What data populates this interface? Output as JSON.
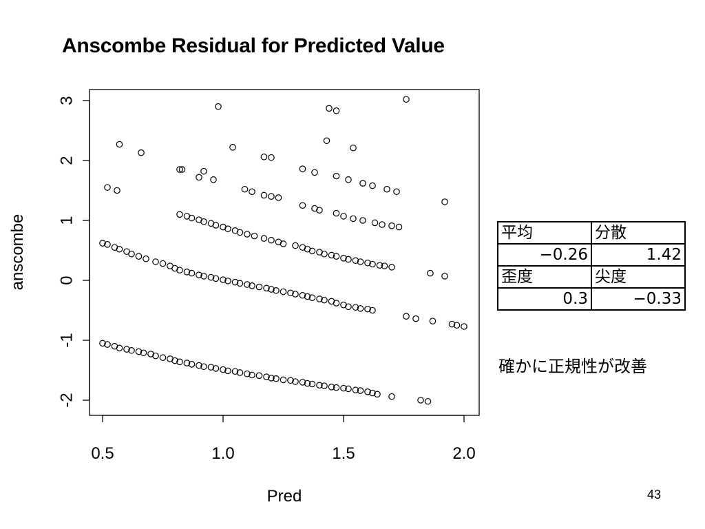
{
  "chart_data": {
    "type": "scatter",
    "title": "Anscombe Residual for Predicted Value",
    "xlabel": "Pred",
    "ylabel": "anscombe",
    "xlim": [
      0.5,
      2.0
    ],
    "ylim": [
      -2,
      3
    ],
    "xticks": [
      "0.5",
      "1.0",
      "1.5",
      "2.0"
    ],
    "yticks": [
      "-2",
      "-1",
      "0",
      "1",
      "2",
      "3"
    ],
    "grid": false,
    "marker": "open-circle",
    "series": [
      {
        "x": [
          0.5,
          0.52,
          0.55,
          0.57,
          0.6,
          0.62,
          0.65,
          0.67,
          0.7,
          0.72,
          0.75,
          0.78,
          0.8,
          0.82,
          0.85,
          0.87,
          0.9,
          0.92,
          0.95,
          0.97,
          1.0,
          1.02,
          1.05,
          1.07,
          1.1,
          1.12,
          1.15,
          1.18,
          1.2,
          1.22,
          1.25,
          1.28,
          1.3,
          1.33,
          1.35,
          1.37,
          1.4,
          1.42,
          1.45,
          1.47,
          1.5,
          1.52,
          1.55,
          1.57,
          1.6,
          1.62,
          1.64,
          1.7,
          1.82,
          1.85
        ],
        "y": [
          -1.05,
          -1.07,
          -1.1,
          -1.13,
          -1.15,
          -1.17,
          -1.19,
          -1.21,
          -1.23,
          -1.26,
          -1.29,
          -1.31,
          -1.34,
          -1.36,
          -1.38,
          -1.4,
          -1.42,
          -1.44,
          -1.45,
          -1.47,
          -1.49,
          -1.51,
          -1.52,
          -1.54,
          -1.56,
          -1.58,
          -1.59,
          -1.61,
          -1.63,
          -1.64,
          -1.66,
          -1.67,
          -1.69,
          -1.7,
          -1.72,
          -1.73,
          -1.75,
          -1.76,
          -1.78,
          -1.79,
          -1.8,
          -1.81,
          -1.83,
          -1.84,
          -1.86,
          -1.88,
          -1.9,
          -1.94,
          -2.0,
          -2.02
        ]
      },
      {
        "x": [
          0.5,
          0.52,
          0.55,
          0.57,
          0.6,
          0.62,
          0.65,
          0.68,
          0.72,
          0.75,
          0.78,
          0.8,
          0.82,
          0.85,
          0.87,
          0.9,
          0.92,
          0.95,
          0.97,
          1.0,
          1.02,
          1.05,
          1.07,
          1.1,
          1.12,
          1.15,
          1.18,
          1.2,
          1.22,
          1.25,
          1.28,
          1.3,
          1.33,
          1.35,
          1.37,
          1.4,
          1.42,
          1.45,
          1.47,
          1.5,
          1.52,
          1.55,
          1.57,
          1.6,
          1.62,
          1.76,
          1.8,
          1.87,
          1.95,
          1.97,
          2.0
        ],
        "y": [
          0.62,
          0.6,
          0.55,
          0.52,
          0.48,
          0.44,
          0.4,
          0.36,
          0.31,
          0.28,
          0.24,
          0.2,
          0.17,
          0.14,
          0.12,
          0.09,
          0.07,
          0.05,
          0.03,
          0.01,
          -0.01,
          -0.03,
          -0.05,
          -0.07,
          -0.09,
          -0.11,
          -0.13,
          -0.15,
          -0.17,
          -0.19,
          -0.21,
          -0.23,
          -0.25,
          -0.27,
          -0.29,
          -0.31,
          -0.33,
          -0.35,
          -0.38,
          -0.41,
          -0.44,
          -0.45,
          -0.47,
          -0.48,
          -0.5,
          -0.6,
          -0.64,
          -0.68,
          -0.73,
          -0.75,
          -0.77
        ]
      },
      {
        "x": [
          0.82,
          0.85,
          0.87,
          0.9,
          0.92,
          0.95,
          0.97,
          1.0,
          1.02,
          1.05,
          1.07,
          1.1,
          1.13,
          1.17,
          1.2,
          1.23,
          1.25,
          1.3,
          1.33,
          1.35,
          1.37,
          1.4,
          1.42,
          1.45,
          1.47,
          1.5,
          1.52,
          1.55,
          1.57,
          1.6,
          1.62,
          1.65,
          1.67,
          1.7,
          1.86,
          1.92
        ],
        "y": [
          1.1,
          1.07,
          1.04,
          1.01,
          0.98,
          0.95,
          0.92,
          0.89,
          0.86,
          0.83,
          0.8,
          0.77,
          0.74,
          0.7,
          0.67,
          0.64,
          0.61,
          0.58,
          0.55,
          0.52,
          0.49,
          0.47,
          0.44,
          0.42,
          0.4,
          0.37,
          0.35,
          0.33,
          0.31,
          0.29,
          0.27,
          0.25,
          0.24,
          0.22,
          0.12,
          0.07
        ]
      },
      {
        "x": [
          0.52,
          0.56,
          0.83,
          0.9,
          0.96,
          1.09,
          1.12,
          1.17,
          1.2,
          1.23,
          1.33,
          1.38,
          1.4,
          1.47,
          1.5,
          1.54,
          1.58,
          1.63,
          1.66,
          1.7,
          1.73,
          1.92
        ],
        "y": [
          1.55,
          1.5,
          1.85,
          1.72,
          1.68,
          1.52,
          1.48,
          1.42,
          1.4,
          1.38,
          1.25,
          1.2,
          1.17,
          1.12,
          1.07,
          1.03,
          1.0,
          0.96,
          0.93,
          0.91,
          0.89,
          1.31
        ]
      },
      {
        "x": [
          0.57,
          0.66,
          0.82,
          0.92,
          1.04,
          1.17,
          1.2,
          1.33,
          1.38,
          1.43,
          1.47,
          1.52,
          1.58,
          1.62,
          1.68,
          1.72
        ],
        "y": [
          2.27,
          2.13,
          1.85,
          1.82,
          2.22,
          2.06,
          2.05,
          1.86,
          1.8,
          2.33,
          1.74,
          1.68,
          1.62,
          1.58,
          1.52,
          1.48
        ]
      },
      {
        "x": [
          0.98,
          1.44,
          1.47,
          1.54,
          1.76
        ],
        "y": [
          2.9,
          2.87,
          2.83,
          2.21,
          3.02
        ]
      }
    ]
  },
  "stats_table": {
    "h1": "平均",
    "h2": "分散",
    "v1": "−0.26",
    "v2": "1.42",
    "h3": "歪度",
    "h4": "尖度",
    "v3": "0.3",
    "v4": "−0.33"
  },
  "note": "確かに正規性が改善",
  "page_number": "43"
}
